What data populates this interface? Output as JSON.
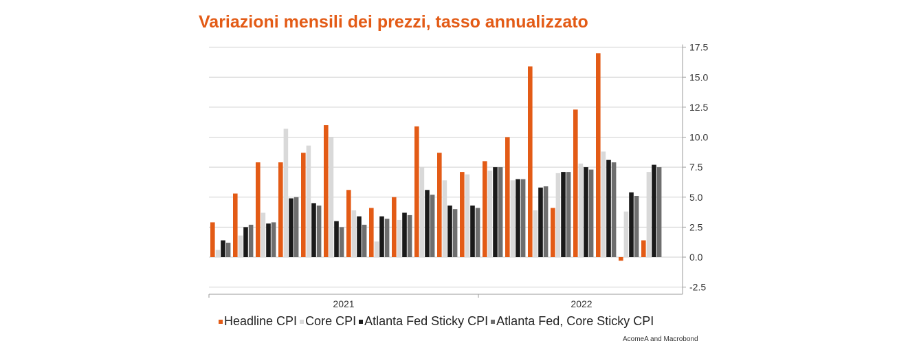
{
  "chart_data": {
    "type": "bar",
    "title": "Variazioni mensili dei prezzi, tasso annualizzato",
    "xlabel": "",
    "ylabel": "",
    "ylim": [
      -2.5,
      17.5
    ],
    "y_ticks": [
      "17.5",
      "15.0",
      "12.5",
      "10.0",
      "7.5",
      "5.0",
      "2.5",
      "0.0",
      "-2.5"
    ],
    "y_axis_side": "right",
    "grid": true,
    "legend_position": "bottom",
    "x_group_labels": [
      "2021",
      "2022"
    ],
    "categories": [
      "2021-01",
      "2021-02",
      "2021-03",
      "2021-04",
      "2021-05",
      "2021-06",
      "2021-07",
      "2021-08",
      "2021-09",
      "2021-10",
      "2021-11",
      "2021-12",
      "2022-01",
      "2022-02",
      "2022-03",
      "2022-04",
      "2022-05",
      "2022-06",
      "2022-07",
      "2022-08"
    ],
    "series": [
      {
        "name": "Headline CPI",
        "color": "#e35b16",
        "values": [
          2.9,
          5.3,
          7.9,
          7.9,
          8.7,
          11.0,
          5.6,
          4.1,
          5.0,
          10.9,
          8.7,
          7.1,
          8.0,
          10.0,
          15.9,
          4.1,
          12.3,
          17.0,
          -0.3,
          1.4
        ]
      },
      {
        "name": "Core CPI",
        "color": "#d9d9d9",
        "values": [
          0.6,
          1.8,
          3.7,
          10.7,
          9.3,
          10.0,
          3.9,
          1.3,
          3.1,
          7.5,
          6.4,
          6.9,
          7.2,
          6.4,
          3.9,
          7.0,
          7.8,
          8.8,
          3.8,
          7.1
        ]
      },
      {
        "name": "Atlanta Fed Sticky CPI",
        "color": "#1a1a1a",
        "values": [
          1.4,
          2.5,
          2.8,
          4.9,
          4.5,
          3.0,
          3.4,
          3.4,
          3.7,
          5.6,
          4.3,
          4.3,
          7.5,
          6.5,
          5.8,
          7.1,
          7.5,
          8.1,
          5.4,
          7.7
        ]
      },
      {
        "name": "Atlanta Fed, Core Sticky CPI",
        "color": "#6e6e6e",
        "values": [
          1.2,
          2.7,
          2.9,
          5.0,
          4.3,
          2.5,
          2.7,
          3.2,
          3.5,
          5.2,
          4.0,
          4.1,
          7.5,
          6.5,
          5.9,
          7.1,
          7.3,
          7.9,
          5.1,
          7.5
        ]
      }
    ],
    "source": "AcomeA and Macrobond"
  }
}
